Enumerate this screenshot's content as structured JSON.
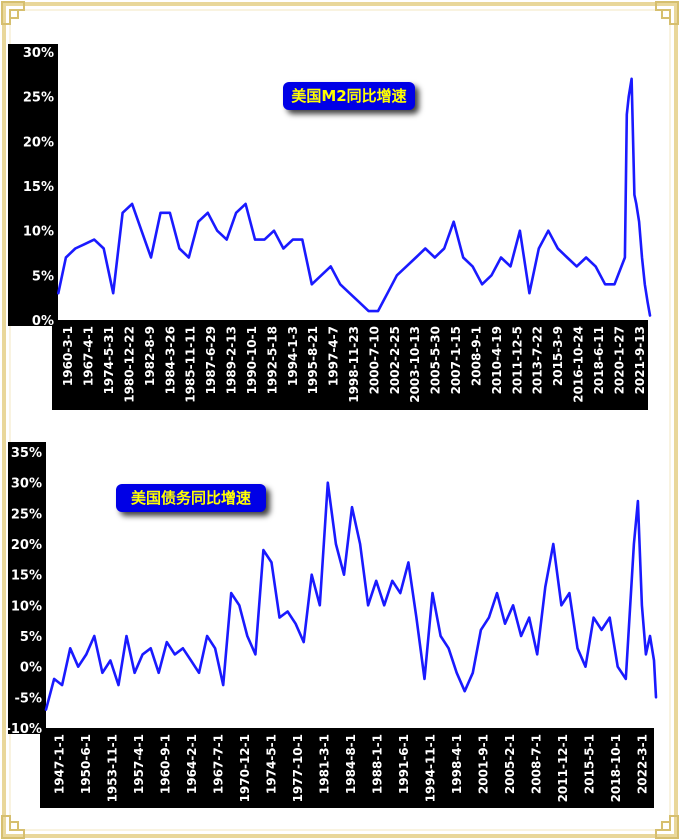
{
  "colors": {
    "series": "#1a1aff",
    "axis_bg": "#000000",
    "frame": "#ead9a0",
    "title_bg": "#0000e6",
    "title_text": "#ffff00"
  },
  "chart_data": [
    {
      "type": "line",
      "title": "美国M2同比增速",
      "ylim": [
        0,
        30
      ],
      "yticks": [
        "0%",
        "5%",
        "10%",
        "15%",
        "20%",
        "25%",
        "30%"
      ],
      "x_range": [
        1960.17,
        2022.75
      ],
      "xticks": [
        "1960-3-1",
        "1967-4-1",
        "1974-5-31",
        "1980-12-22",
        "1982-8-9",
        "1984-3-26",
        "1985-11-11",
        "1987-6-29",
        "1989-2-13",
        "1990-10-1",
        "1992-5-18",
        "1994-1-3",
        "1995-8-21",
        "1997-4-7",
        "1998-11-23",
        "2000-7-10",
        "2002-2-25",
        "2003-10-13",
        "2005-5-30",
        "2007-1-15",
        "2008-9-1",
        "2010-4-19",
        "2011-12-5",
        "2013-7-22",
        "2015-3-9",
        "2016-10-24",
        "2018-6-11",
        "2020-1-27",
        "2021-9-13"
      ],
      "series": [
        {
          "x": [
            1960.2,
            1961,
            1962,
            1963,
            1964,
            1965,
            1966,
            1967,
            1968,
            1969,
            1970,
            1971,
            1972,
            1973,
            1974,
            1975,
            1976,
            1977,
            1978,
            1979,
            1980,
            1981,
            1982,
            1983,
            1984,
            1985,
            1986,
            1987,
            1988,
            1989,
            1990,
            1991,
            1992,
            1993,
            1994,
            1995,
            1996,
            1997,
            1998,
            1999,
            2000,
            2001,
            2002,
            2003,
            2004,
            2005,
            2006,
            2007,
            2008,
            2009,
            2010,
            2011,
            2012,
            2013,
            2014,
            2015,
            2016,
            2017,
            2018,
            2019,
            2020.1,
            2020.3,
            2020.5,
            2020.8,
            2021.1,
            2021.3,
            2021.6,
            2021.9,
            2022.2,
            2022.5,
            2022.75
          ],
          "y": [
            3,
            7,
            8,
            8.5,
            9,
            8,
            3,
            12,
            13,
            10,
            7,
            12,
            12,
            8,
            7,
            11,
            12,
            10,
            9,
            12,
            13,
            9,
            9,
            10,
            8,
            9,
            9,
            4,
            5,
            6,
            4,
            3,
            2,
            1,
            1,
            3,
            5,
            6,
            7,
            8,
            7,
            8,
            11,
            7,
            6,
            4,
            5,
            7,
            6,
            10,
            3,
            8,
            10,
            8,
            7,
            6,
            7,
            6,
            4,
            4,
            7,
            23,
            25,
            27,
            14,
            13,
            11,
            7,
            4,
            2,
            0.5
          ]
        }
      ]
    },
    {
      "type": "line",
      "title": "美国债务同比增速",
      "ylim": [
        -10,
        35
      ],
      "yticks": [
        "-10%",
        "-5%",
        "0%",
        "5%",
        "10%",
        "15%",
        "20%",
        "25%",
        "30%",
        "35%"
      ],
      "x_range": [
        1947.0,
        2022.75
      ],
      "xticks": [
        "1947-1-1",
        "1950-6-1",
        "1953-11-1",
        "1957-4-1",
        "1960-9-1",
        "1964-2-1",
        "1967-7-1",
        "1970-12-1",
        "1974-5-1",
        "1977-10-1",
        "1981-3-1",
        "1984-8-1",
        "1988-1-1",
        "1991-6-1",
        "1994-11-1",
        "1998-4-1",
        "2001-9-1",
        "2005-2-1",
        "2008-7-1",
        "2011-12-1",
        "2015-5-1",
        "2018-10-1",
        "2022-3-1"
      ],
      "series": [
        {
          "x": [
            1947,
            1948,
            1949,
            1950,
            1951,
            1952,
            1953,
            1954,
            1955,
            1956,
            1957,
            1958,
            1959,
            1960,
            1961,
            1962,
            1963,
            1964,
            1965,
            1966,
            1967,
            1968,
            1969,
            1970,
            1971,
            1972,
            1973,
            1974,
            1975,
            1976,
            1977,
            1978,
            1979,
            1980,
            1981,
            1982,
            1983,
            1984,
            1985,
            1986,
            1987,
            1988,
            1989,
            1990,
            1991,
            1992,
            1993,
            1994,
            1995,
            1996,
            1997,
            1998,
            1999,
            2000,
            2001,
            2002,
            2003,
            2004,
            2005,
            2006,
            2007,
            2008,
            2009,
            2010,
            2011,
            2012,
            2013,
            2014,
            2015,
            2016,
            2017,
            2018,
            2019,
            2020,
            2020.5,
            2021,
            2021.5,
            2022,
            2022.5,
            2022.75
          ],
          "y": [
            -7,
            -2,
            -3,
            3,
            0,
            2,
            5,
            -1,
            1,
            -3,
            5,
            -1,
            2,
            3,
            -1,
            4,
            2,
            3,
            1,
            -1,
            5,
            3,
            -3,
            12,
            10,
            5,
            2,
            19,
            17,
            8,
            9,
            7,
            4,
            15,
            10,
            30,
            20,
            15,
            26,
            20,
            10,
            14,
            10,
            14,
            12,
            17,
            8,
            -2,
            12,
            5,
            3,
            -1,
            -4,
            -1,
            6,
            8,
            12,
            7,
            10,
            5,
            8,
            2,
            13,
            20,
            10,
            12,
            3,
            0,
            8,
            6,
            8,
            0,
            -2,
            20,
            27,
            10,
            2,
            5,
            1,
            -5
          ]
        }
      ]
    }
  ]
}
